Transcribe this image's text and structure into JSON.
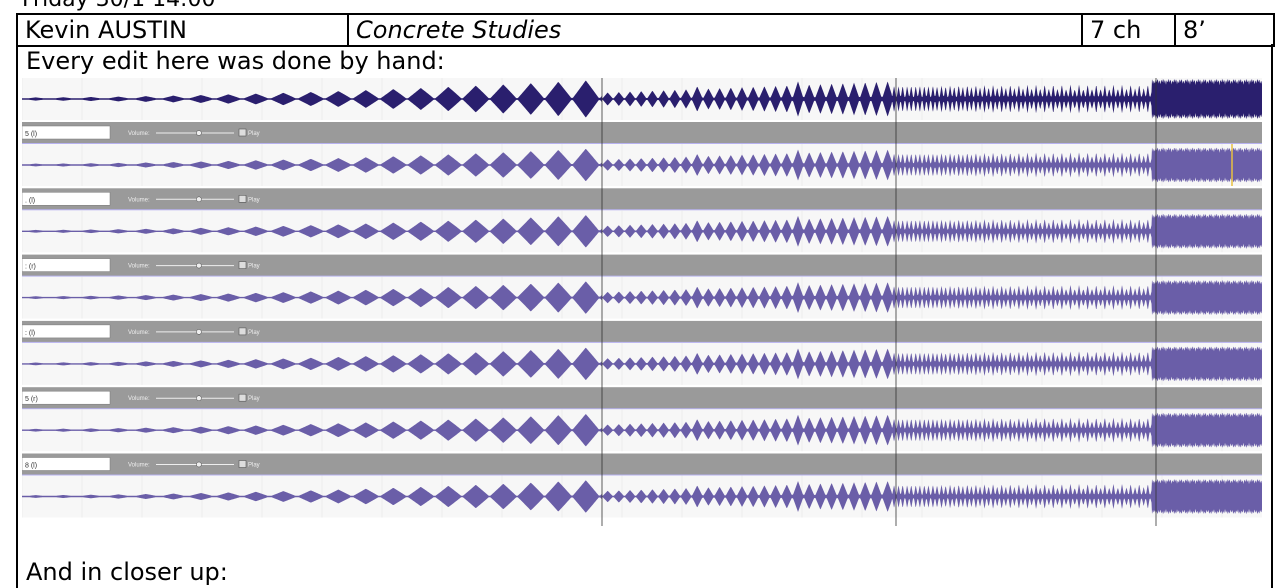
{
  "page": {
    "top_line": "Friday 30/1 14:00",
    "header": {
      "composer": "Kevin AUSTIN",
      "title": "Concrete Studies",
      "channels": "7 ch",
      "duration": "8’"
    },
    "caption": "Every edit here was done by hand:",
    "closer_caption": "And in closer up:"
  },
  "audio_editor": {
    "waveform_colors": {
      "first_track": "#2a1f6e",
      "other_tracks": "#6a5ea8"
    },
    "track_header_color": "#9a9a9a",
    "volume_label": "Volume:",
    "play_label": "Play",
    "tracks": [
      {
        "label": "5 (l)",
        "volume": 0.55,
        "play_checked": true
      },
      {
        "label": ". (l)",
        "volume": 0.55,
        "play_checked": true
      },
      {
        "label": ": (r)",
        "volume": 0.55,
        "play_checked": true
      },
      {
        "label": ": (l)",
        "volume": 0.55,
        "play_checked": true
      },
      {
        "label": "5 (r)",
        "volume": 0.55,
        "play_checked": true
      },
      {
        "label": "8 (l)",
        "volume": 0.55,
        "play_checked": true
      }
    ]
  }
}
